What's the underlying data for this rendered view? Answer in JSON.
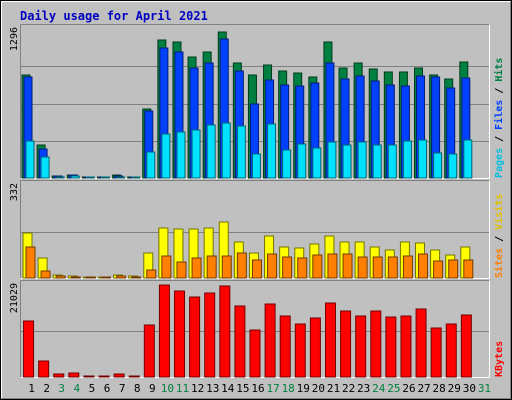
{
  "chart_data": {
    "type": "bar",
    "title": "Daily usage for April 2021",
    "categories": [
      "1",
      "2",
      "3",
      "4",
      "5",
      "6",
      "7",
      "8",
      "9",
      "10",
      "11",
      "12",
      "13",
      "14",
      "15",
      "16",
      "17",
      "18",
      "19",
      "20",
      "21",
      "22",
      "23",
      "24",
      "25",
      "26",
      "27",
      "28",
      "29",
      "30",
      "31"
    ],
    "weekend_days": [
      3,
      4,
      10,
      11,
      17,
      18,
      24,
      25,
      31
    ],
    "panels": [
      {
        "name": "hits-files-pages",
        "ymax_label": "1296",
        "ymax": 1296,
        "legend": [
          "Pages",
          "/",
          "Files",
          "/",
          "Hits"
        ],
        "series": [
          {
            "name": "Hits",
            "color": "#008040",
            "values": [
              900,
              290,
              20,
              30,
              10,
              10,
              25,
              12,
              600,
              1200,
              1180,
              1050,
              1100,
              1270,
              1000,
              900,
              980,
              930,
              910,
              880,
              1180,
              960,
              1000,
              950,
              920,
              920,
              960,
              900,
              860,
              1010,
              0
            ]
          },
          {
            "name": "Files",
            "color": "#0040ff",
            "values": [
              880,
              250,
              18,
              25,
              10,
              8,
              20,
              10,
              580,
              1130,
              1100,
              960,
              1000,
              1210,
              930,
              640,
              850,
              810,
              800,
              830,
              1000,
              860,
              890,
              840,
              810,
              800,
              890,
              880,
              780,
              870,
              0
            ]
          },
          {
            "name": "Pages",
            "color": "#00e0ff",
            "values": [
              320,
              180,
              10,
              15,
              5,
              5,
              10,
              8,
              230,
              380,
              400,
              420,
              460,
              480,
              450,
              210,
              470,
              240,
              300,
              260,
              310,
              290,
              310,
              290,
              290,
              320,
              330,
              220,
              210,
              330,
              0
            ]
          }
        ]
      },
      {
        "name": "visits-sites",
        "ymax_label": "332",
        "ymax": 332,
        "legend": [
          "Sites",
          "/",
          "Visits"
        ],
        "series": [
          {
            "name": "Visits",
            "color": "#ffff00",
            "values": [
              160,
              70,
              10,
              8,
              5,
              5,
              12,
              6,
              90,
              180,
              176,
              176,
              180,
              200,
              130,
              90,
              150,
              110,
              108,
              120,
              150,
              128,
              128,
              110,
              100,
              130,
              126,
              100,
              82,
              110,
              0
            ]
          },
          {
            "name": "Sites",
            "color": "#ff8000",
            "values": [
              110,
              26,
              6,
              4,
              3,
              3,
              6,
              5,
              30,
              80,
              56,
              70,
              78,
              80,
              88,
              64,
              86,
              75,
              72,
              82,
              84,
              86,
              75,
              74,
              74,
              80,
              86,
              62,
              64,
              63,
              0
            ]
          }
        ]
      },
      {
        "name": "kbytes",
        "ymax_label": "21029",
        "ymax": 21029,
        "legend": [
          "KBytes"
        ],
        "series": [
          {
            "name": "KBytes",
            "color": "#ff0000",
            "values": [
              12900,
              3700,
              600,
              900,
              200,
              200,
              600,
              300,
              12000,
              21029,
              19600,
              18300,
              19200,
              20800,
              16200,
              10800,
              16800,
              14000,
              12200,
              13600,
              17000,
              15000,
              14000,
              15000,
              13800,
              14000,
              15600,
              11200,
              12100,
              14100,
              0
            ]
          }
        ]
      }
    ]
  }
}
